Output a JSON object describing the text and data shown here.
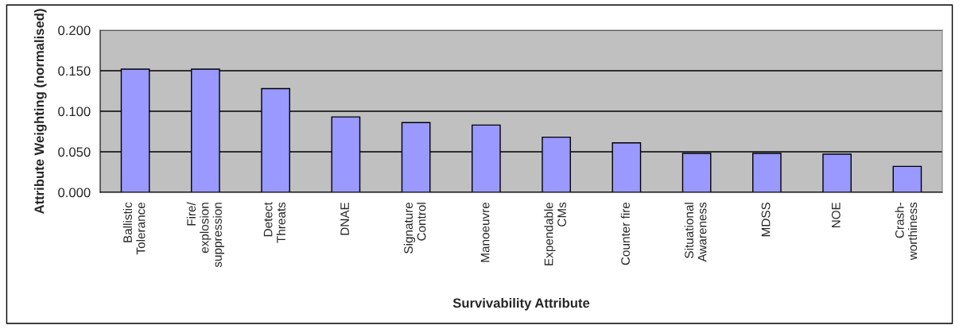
{
  "chart_data": {
    "type": "bar",
    "categories": [
      "Ballistic\nTolerance",
      "Fire/\nexplosion\nsuppression",
      "Detect\nThreats",
      "DNAE",
      "Signature\nControl",
      "Manoeuvre",
      "Expendable\nCMs",
      "Counter fire",
      "Situational\nAwareness",
      "MDSS",
      "NOE",
      "Crash-\nworthiness"
    ],
    "values": [
      0.152,
      0.152,
      0.128,
      0.093,
      0.086,
      0.083,
      0.068,
      0.061,
      0.048,
      0.048,
      0.047,
      0.032
    ],
    "color": "#9999ff",
    "xlabel": "Survivability Attribute",
    "ylabel": "Attribute Weighting (normalised)",
    "ylim": [
      0,
      0.2
    ],
    "yticks": [
      {
        "value": 0,
        "label": "0.000"
      },
      {
        "value": 0.05,
        "label": "0.050"
      },
      {
        "value": 0.1,
        "label": "0.100"
      },
      {
        "value": 0.15,
        "label": "0.150"
      },
      {
        "value": 0.2,
        "label": "0.200"
      }
    ],
    "grid": "y"
  }
}
